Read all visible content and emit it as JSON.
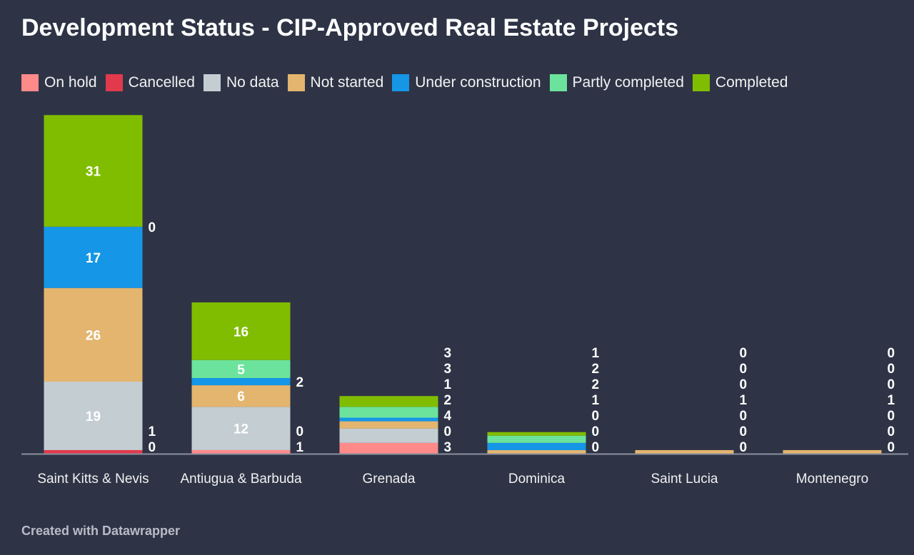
{
  "chart_data": {
    "type": "bar",
    "stacked": true,
    "title": "Development Status - CIP-Approved Real Estate Projects",
    "xlabel": "",
    "ylabel": "",
    "categories": [
      "Saint Kitts & Nevis",
      "Antiugua & Barbuda",
      "Grenada",
      "Dominica",
      "Saint Lucia",
      "Montenegro"
    ],
    "series": [
      {
        "name": "On hold",
        "color": "#ff8a8a",
        "values": [
          0,
          1,
          3,
          0,
          0,
          0
        ]
      },
      {
        "name": "Cancelled",
        "color": "#e03a4c",
        "values": [
          1,
          0,
          0,
          0,
          0,
          0
        ]
      },
      {
        "name": "No data",
        "color": "#c4cdd2",
        "values": [
          19,
          12,
          4,
          0,
          0,
          0
        ]
      },
      {
        "name": "Not started",
        "color": "#e4b56f",
        "values": [
          26,
          6,
          2,
          1,
          1,
          1
        ]
      },
      {
        "name": "Under construction",
        "color": "#1596e6",
        "values": [
          17,
          2,
          1,
          2,
          0,
          0
        ]
      },
      {
        "name": "Partly completed",
        "color": "#6ce39c",
        "values": [
          0,
          5,
          3,
          2,
          0,
          0
        ]
      },
      {
        "name": "Completed",
        "color": "#80bd01",
        "values": [
          31,
          16,
          3,
          1,
          0,
          0
        ]
      }
    ],
    "legend_position": "top-left",
    "grid": false
  },
  "footer": "Created with Datawrapper"
}
